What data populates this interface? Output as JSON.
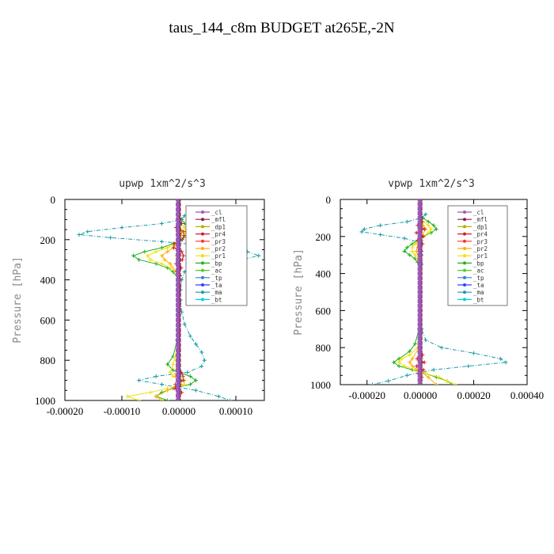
{
  "figure_title": "taus_144_c8m  BUDGET at265E,-2N",
  "colors": {
    "cl": "#9b59b6",
    "mfl": "#8e1a4e",
    "dp1": "#b0b000",
    "pr4": "#d0202a",
    "pr3": "#ff3030",
    "pr2": "#ffb000",
    "pr1": "#f0e000",
    "bp": "#20b020",
    "ac": "#50d020",
    "tp": "#3080d0",
    "ta": "#3040ff",
    "ma": "#1a9aa8",
    "bt": "#00d0e0"
  },
  "legend": [
    "_cl",
    "_mfl",
    "_dp1",
    "_pr4",
    "_pr3",
    "_pr2",
    "_pr1",
    "_bp",
    "_ac",
    "_tp",
    "_ta",
    "_ma",
    "_bt"
  ],
  "chart_data": [
    {
      "type": "line",
      "title": "upwp   1xm^2/s^3",
      "ylabel": "Pressure [hPa]",
      "xlabel": "",
      "xlim": [
        -0.0002,
        0.00015
      ],
      "ylim": [
        1000,
        0
      ],
      "x_ticks": [
        "-0.00020",
        "-0.00010",
        "0.00000",
        "0.00010"
      ],
      "x_tick_values": [
        -0.0002,
        -0.0001,
        0,
        0.0001
      ],
      "y_ticks": [
        0,
        200,
        400,
        600,
        800,
        1000
      ],
      "legend_position": "top-right",
      "series": [
        {
          "key": "ma",
          "y": [
            80,
            100,
            120,
            140,
            160,
            175,
            190,
            210,
            230,
            260,
            280,
            300,
            330,
            360,
            400,
            450,
            500,
            560,
            620,
            680,
            720,
            760,
            800,
            830,
            860,
            880,
            900,
            920,
            950,
            980,
            1000
          ],
          "x": [
            1e-05,
            5e-06,
            -3e-05,
            -0.0001,
            -0.00016,
            -0.000175,
            -0.00012,
            -3e-05,
            5e-05,
            0.00012,
            0.00014,
            0.00011,
            3e-05,
            1e-05,
            5e-06,
            3e-06,
            3e-06,
            5e-06,
            1e-05,
            2e-05,
            3e-05,
            4e-05,
            4.5e-05,
            4e-05,
            1.5e-05,
            -4e-05,
            -7e-05,
            -3e-05,
            3e-05,
            7e-05,
            9e-05
          ]
        },
        {
          "key": "bp",
          "y": [
            80,
            100,
            120,
            140,
            160,
            180,
            200,
            220,
            240,
            260,
            280,
            300,
            320,
            340,
            360,
            400,
            500,
            600,
            700,
            780,
            820,
            850,
            880,
            900,
            920,
            940,
            960,
            980,
            1000
          ],
          "x": [
            0,
            5e-06,
            1e-05,
            2e-05,
            2e-05,
            1.5e-05,
            5e-06,
            -1e-05,
            -3e-05,
            -6e-05,
            -8e-05,
            -7e-05,
            -4e-05,
            -2e-05,
            -1e-05,
            0,
            0,
            0,
            -3e-06,
            -1e-05,
            -2e-05,
            -1e-05,
            2e-05,
            3e-05,
            2e-05,
            -1e-05,
            -3e-05,
            -4e-05,
            -2e-05
          ]
        },
        {
          "key": "pr1",
          "y": [
            80,
            120,
            140,
            160,
            180,
            200,
            220,
            240,
            260,
            280,
            300,
            320,
            340,
            360,
            400,
            500,
            600,
            700,
            780,
            820,
            860,
            880,
            900,
            920,
            940,
            960,
            980,
            1000
          ],
          "x": [
            0,
            3e-06,
            1e-05,
            1.2e-05,
            1e-05,
            4e-06,
            -5e-06,
            -2e-05,
            -4e-05,
            -5.5e-05,
            -5e-05,
            -3e-05,
            -1.5e-05,
            -5e-06,
            0,
            0,
            0,
            -2e-06,
            -6e-06,
            -1e-05,
            -1.5e-05,
            -1e-05,
            1e-05,
            1e-05,
            -2e-05,
            -5e-05,
            -9e-05,
            -7e-05
          ]
        },
        {
          "key": "pr2",
          "y": [
            80,
            120,
            160,
            200,
            240,
            260,
            280,
            300,
            320,
            360,
            400,
            600,
            800,
            880,
            900,
            920,
            950,
            980,
            1000
          ],
          "x": [
            0,
            0,
            6e-06,
            3e-06,
            -1e-05,
            -2e-05,
            -3e-05,
            -2.5e-05,
            -1.5e-05,
            -5e-06,
            0,
            0,
            -4e-06,
            -6e-06,
            5e-06,
            4e-06,
            -2e-05,
            -4e-05,
            -3e-05
          ]
        },
        {
          "key": "pr4",
          "y": [
            100,
            120,
            140,
            160,
            180,
            200,
            220,
            240,
            260,
            280,
            300,
            320,
            340,
            360,
            380,
            400,
            420,
            440,
            460,
            480,
            500,
            540,
            580,
            620,
            660,
            700,
            740,
            780,
            820,
            860,
            880,
            900,
            920,
            940,
            960,
            980,
            1000
          ],
          "x": [
            0,
            5e-06,
            -5e-06,
            8e-06,
            9e-06,
            6e-06,
            -8e-06,
            -9e-06,
            5e-06,
            8e-06,
            6e-06,
            -5e-06,
            4e-06,
            -3e-06,
            2e-06,
            0,
            0,
            0,
            0,
            0,
            0,
            0,
            0,
            0,
            0,
            0,
            0,
            0,
            0,
            4e-06,
            7e-06,
            8e-06,
            -6e-06,
            -7e-06,
            5e-06,
            0,
            0
          ]
        },
        {
          "key": "dp1",
          "y": [
            80,
            120,
            160,
            200,
            240,
            280,
            320,
            400,
            600,
            800,
            880,
            920,
            960,
            1000
          ],
          "x": [
            0,
            2e-06,
            4e-06,
            3e-06,
            -3e-06,
            -4e-06,
            0,
            0,
            0,
            0,
            3e-06,
            -3e-06,
            0,
            0
          ]
        },
        {
          "key": "mfl",
          "y": [
            0,
            1000
          ],
          "x": [
            0,
            0
          ],
          "thick": true
        },
        {
          "key": "ta",
          "y": [
            120,
            160,
            200,
            300,
            480,
            700,
            900,
            1000
          ],
          "x": [
            2e-06,
            -2e-06,
            2e-06,
            0,
            -2e-06,
            0,
            2e-06,
            0
          ]
        },
        {
          "key": "cl",
          "y": [
            0,
            1000
          ],
          "x": [
            -2e-06,
            -2e-06
          ],
          "thick": true
        }
      ]
    },
    {
      "type": "line",
      "title": "vpwp   1xm^2/s^3",
      "ylabel": "Pressure [hPa]",
      "xlabel": "",
      "xlim": [
        -0.0003,
        0.0004
      ],
      "ylim": [
        1000,
        0
      ],
      "x_ticks": [
        "-0.00020",
        "0.00000",
        "0.00020",
        "0.00040"
      ],
      "x_tick_values": [
        -0.0002,
        0,
        0.0002,
        0.0004
      ],
      "y_ticks": [
        0,
        200,
        400,
        600,
        800,
        1000
      ],
      "legend_position": "top-right",
      "series": [
        {
          "key": "ma",
          "y": [
            80,
            100,
            120,
            140,
            160,
            175,
            190,
            210,
            230,
            260,
            300,
            350,
            400,
            500,
            600,
            700,
            760,
            800,
            830,
            860,
            880,
            900,
            920,
            950,
            980,
            1000
          ],
          "x": [
            2e-05,
            5e-06,
            -5e-05,
            -0.00015,
            -0.00021,
            -0.00022,
            -0.00015,
            -6e-05,
            -1e-05,
            0,
            5e-06,
            5e-06,
            0,
            0,
            0,
            5e-06,
            2e-05,
            8e-05,
            0.0002,
            0.0003,
            0.00032,
            0.00018,
            5e-05,
            -5e-05,
            -0.00012,
            -0.00018
          ]
        },
        {
          "key": "bp",
          "y": [
            80,
            100,
            120,
            140,
            160,
            180,
            200,
            220,
            240,
            260,
            280,
            300,
            320,
            340,
            360,
            400,
            500,
            600,
            700,
            780,
            820,
            860,
            880,
            900,
            920,
            940,
            960,
            980,
            1000
          ],
          "x": [
            0,
            1e-05,
            3e-05,
            5e-05,
            6e-05,
            4e-05,
            1e-05,
            -1e-05,
            -3e-05,
            -5e-05,
            -6e-05,
            -4e-05,
            -2e-05,
            -1e-05,
            0,
            0,
            0,
            0,
            -5e-06,
            -2e-05,
            -4e-05,
            -8e-05,
            -0.0001,
            -8e-05,
            -3e-05,
            2e-05,
            6e-05,
            0.0001,
            0.00012
          ]
        },
        {
          "key": "pr1",
          "y": [
            80,
            120,
            140,
            160,
            180,
            200,
            220,
            240,
            260,
            280,
            300,
            320,
            360,
            400,
            600,
            800,
            840,
            860,
            880,
            900,
            920,
            940,
            960,
            980,
            1000
          ],
          "x": [
            0,
            1e-05,
            3e-05,
            4e-05,
            3e-05,
            1e-05,
            -5e-06,
            -2e-05,
            -3e-05,
            -3e-05,
            -2e-05,
            -1e-05,
            0,
            0,
            0,
            -1e-05,
            -4e-05,
            -7e-05,
            -8e-05,
            -6e-05,
            -2e-05,
            2e-05,
            7e-05,
            0.0001,
            0.00013
          ]
        },
        {
          "key": "pr2",
          "y": [
            80,
            140,
            160,
            200,
            240,
            280,
            320,
            400,
            600,
            800,
            860,
            880,
            900,
            920,
            960,
            1000
          ],
          "x": [
            0,
            1e-05,
            2e-05,
            5e-06,
            -1e-05,
            -1.5e-05,
            -5e-06,
            0,
            0,
            -5e-06,
            -3e-05,
            -4e-05,
            -3e-05,
            -1e-05,
            3e-05,
            6e-05
          ]
        },
        {
          "key": "pr4",
          "y": [
            100,
            120,
            140,
            160,
            180,
            200,
            220,
            240,
            260,
            280,
            300,
            340,
            400,
            500,
            600,
            700,
            800,
            840,
            860,
            880,
            900,
            920,
            940,
            960,
            980,
            1000
          ],
          "x": [
            0,
            6e-06,
            -1e-05,
            1.5e-05,
            -1.5e-05,
            1.2e-05,
            -1e-05,
            8e-06,
            -6e-06,
            4e-06,
            0,
            0,
            0,
            0,
            0,
            0,
            0,
            8e-06,
            -1.2e-05,
            1.5e-05,
            -1.4e-05,
            1.2e-05,
            -8e-06,
            5e-06,
            0,
            0
          ]
        },
        {
          "key": "dp1",
          "y": [
            80,
            140,
            180,
            220,
            300,
            400,
            700,
            860,
            900,
            940,
            1000
          ],
          "x": [
            0,
            5e-06,
            -4e-06,
            4e-06,
            0,
            0,
            0,
            4e-06,
            -4e-06,
            3e-06,
            0
          ]
        },
        {
          "key": "mfl",
          "y": [
            0,
            1000
          ],
          "x": [
            0,
            0
          ],
          "thick": true
        },
        {
          "key": "ta",
          "y": [
            100,
            160,
            300,
            500,
            800,
            900,
            1000
          ],
          "x": [
            3e-06,
            -3e-06,
            0,
            2e-06,
            0,
            -3e-06,
            0
          ]
        },
        {
          "key": "cl",
          "y": [
            0,
            1000
          ],
          "x": [
            -3e-06,
            -3e-06
          ],
          "thick": true
        }
      ]
    }
  ]
}
